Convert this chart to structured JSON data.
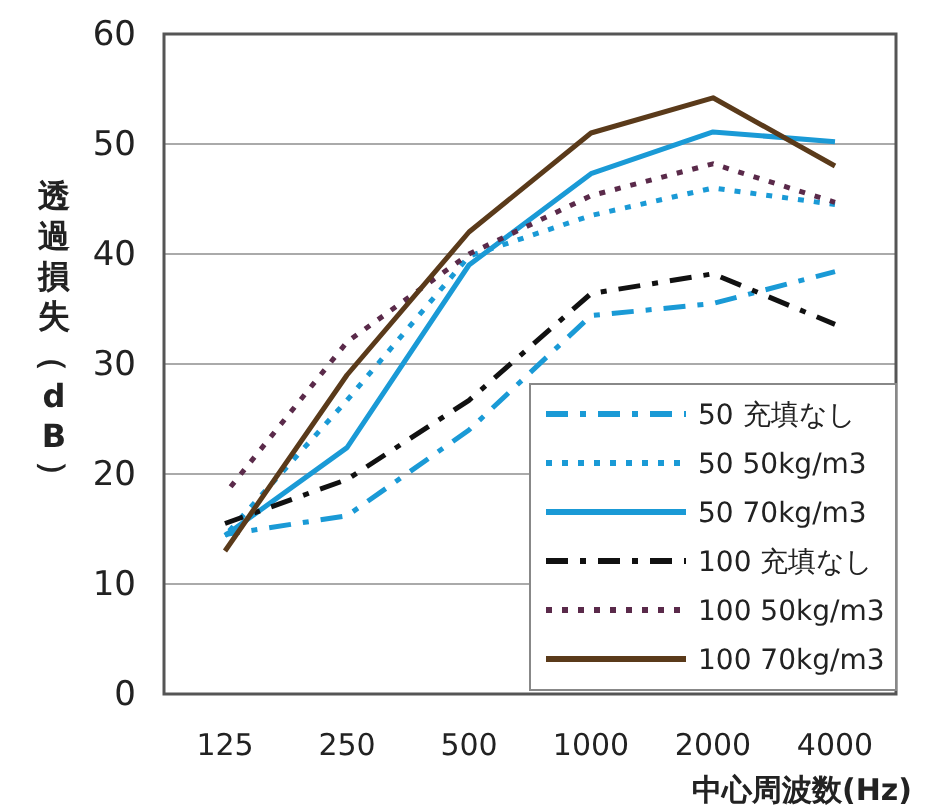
{
  "chart_data": {
    "type": "line",
    "xlabel": "中心周波数(Hz)",
    "ylabel": "透過損失（dB）",
    "categories": [
      "125",
      "250",
      "500",
      "1000",
      "2000",
      "4000"
    ],
    "ylim": [
      0,
      60
    ],
    "yticks": [
      0,
      10,
      20,
      30,
      40,
      50,
      60
    ],
    "grid": "y",
    "legend": "bottom right",
    "marker": "none",
    "series": [
      {
        "name": "50 充填なし",
        "color": "#1a9ad6",
        "line_style": "dashdot",
        "values": [
          14.5,
          16.2,
          24,
          34.4,
          35.5,
          38.4
        ]
      },
      {
        "name": "50 50kg/m3",
        "color": "#1a9ad6",
        "line_style": "dotted",
        "values": [
          14.4,
          26.7,
          39.8,
          43.5,
          46,
          44.5
        ]
      },
      {
        "name": "50 70kg/m3",
        "color": "#1a9ad6",
        "line_style": "solid",
        "values": [
          14.4,
          22.4,
          39,
          47.3,
          51.1,
          50.2
        ]
      },
      {
        "name": "100 充填なし",
        "color": "#111111",
        "line_style": "dashdot",
        "values": [
          15.5,
          19.5,
          26.7,
          36.4,
          38.2,
          33.6
        ]
      },
      {
        "name": "100 50kg/m3",
        "color": "#5a2a4a",
        "line_style": "dotted",
        "values": [
          18.2,
          32,
          40,
          45.3,
          48.2,
          44.7
        ]
      },
      {
        "name": "100 70kg/m3",
        "color": "#5a3a1a",
        "line_style": "solid",
        "values": [
          13,
          29,
          42,
          51,
          54.2,
          48
        ]
      }
    ]
  }
}
